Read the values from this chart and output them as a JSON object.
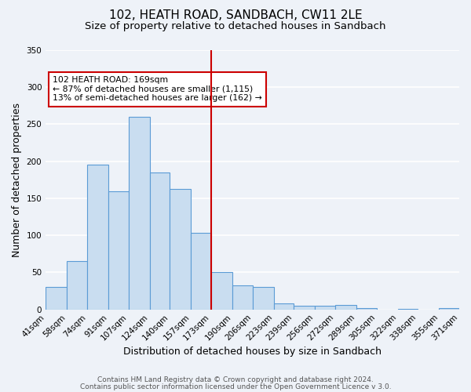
{
  "title": "102, HEATH ROAD, SANDBACH, CW11 2LE",
  "subtitle": "Size of property relative to detached houses in Sandbach",
  "xlabel": "Distribution of detached houses by size in Sandbach",
  "ylabel": "Number of detached properties",
  "bar_edges": [
    41,
    58,
    74,
    91,
    107,
    124,
    140,
    157,
    173,
    190,
    206,
    223,
    239,
    256,
    272,
    289,
    305,
    322,
    338,
    355,
    371
  ],
  "bar_heights": [
    30,
    65,
    195,
    160,
    260,
    185,
    163,
    103,
    50,
    32,
    30,
    8,
    5,
    5,
    6,
    2,
    0,
    1,
    0,
    2
  ],
  "bar_color": "#c9ddf0",
  "bar_edge_color": "#5b9bd5",
  "vline_x": 173,
  "vline_color": "#cc0000",
  "annotation_title": "102 HEATH ROAD: 169sqm",
  "annotation_line1": "← 87% of detached houses are smaller (1,115)",
  "annotation_line2": "13% of semi-detached houses are larger (162) →",
  "annotation_box_edge": "#cc0000",
  "ylim": [
    0,
    350
  ],
  "yticks": [
    0,
    50,
    100,
    150,
    200,
    250,
    300,
    350
  ],
  "tick_labels": [
    "41sqm",
    "58sqm",
    "74sqm",
    "91sqm",
    "107sqm",
    "124sqm",
    "140sqm",
    "157sqm",
    "173sqm",
    "190sqm",
    "206sqm",
    "223sqm",
    "239sqm",
    "256sqm",
    "272sqm",
    "289sqm",
    "305sqm",
    "322sqm",
    "338sqm",
    "355sqm",
    "371sqm"
  ],
  "footer1": "Contains HM Land Registry data © Crown copyright and database right 2024.",
  "footer2": "Contains public sector information licensed under the Open Government Licence v 3.0.",
  "background_color": "#eef2f8",
  "grid_color": "#ffffff",
  "title_fontsize": 11,
  "subtitle_fontsize": 9.5,
  "label_fontsize": 9,
  "tick_fontsize": 7.5,
  "footer_fontsize": 6.5
}
